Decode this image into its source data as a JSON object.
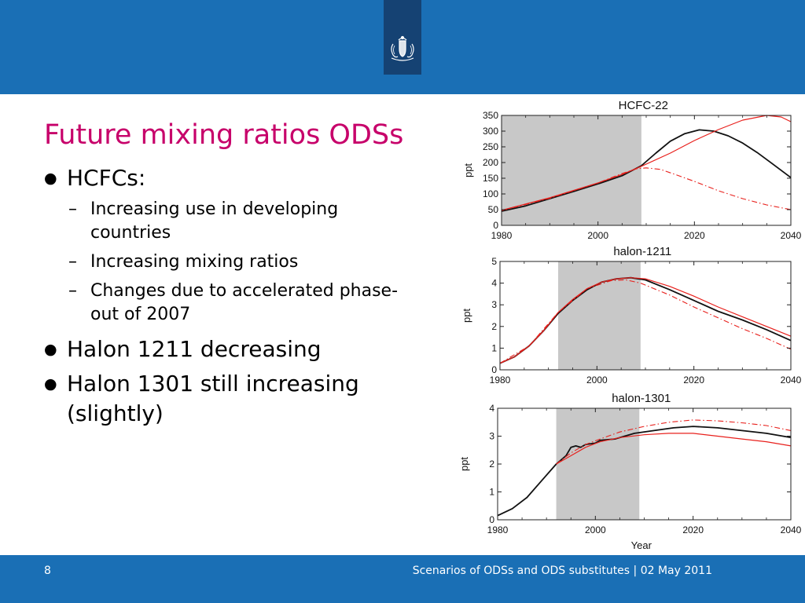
{
  "slide": {
    "title": "Future mixing ratios ODSs",
    "bullets": [
      {
        "text": "HCFCs:",
        "sub": [
          "Increasing use in developing countries",
          "Increasing mixing ratios",
          "Changes due to accelerated phase-out of 2007"
        ]
      },
      {
        "text": "Halon 1211 decreasing",
        "sub": []
      },
      {
        "text": "Halon 1301 still increasing (slightly)",
        "sub": []
      }
    ],
    "bullet_glyph": "●",
    "dash_glyph": "–"
  },
  "footer": {
    "page_number": "8",
    "text": "Scenarios of ODSs and ODS substitutes | 02 May 2011"
  },
  "colors": {
    "header_blue": "#1a6fb5",
    "logo_box": "#154273",
    "title_magenta": "#c7006a",
    "shade": "#c8c8c8",
    "red": "#e8201c",
    "black": "#111111"
  },
  "icons": {
    "logo": "coat-of-arms-icon"
  },
  "chart_data": [
    {
      "type": "line",
      "title": "HCFC-22",
      "xlabel": "",
      "ylabel": "ppt",
      "xlim": [
        1980,
        2040
      ],
      "ylim": [
        0,
        350
      ],
      "xticks": [
        1980,
        2000,
        2020,
        2040
      ],
      "yticks": [
        0,
        50,
        100,
        150,
        200,
        250,
        300,
        350
      ],
      "shade": [
        1980,
        2009
      ],
      "series": [
        {
          "style": "black-solid",
          "points": [
            [
              1980,
              45
            ],
            [
              1985,
              62
            ],
            [
              1990,
              85
            ],
            [
              1995,
              108
            ],
            [
              2000,
              132
            ],
            [
              2005,
              158
            ],
            [
              2009,
              190
            ],
            [
              2012,
              230
            ],
            [
              2015,
              268
            ],
            [
              2018,
              292
            ],
            [
              2021,
              304
            ],
            [
              2024,
              300
            ],
            [
              2027,
              285
            ],
            [
              2030,
              262
            ],
            [
              2033,
              232
            ],
            [
              2036,
              198
            ],
            [
              2040,
              152
            ]
          ]
        },
        {
          "style": "red-solid",
          "points": [
            [
              1980,
              48
            ],
            [
              1990,
              88
            ],
            [
              2000,
              135
            ],
            [
              2005,
              162
            ],
            [
              2009,
              188
            ],
            [
              2015,
              230
            ],
            [
              2020,
              270
            ],
            [
              2025,
              305
            ],
            [
              2030,
              335
            ],
            [
              2035,
              352
            ],
            [
              2038,
              345
            ],
            [
              2040,
              330
            ]
          ]
        },
        {
          "style": "red-dashdot",
          "points": [
            [
              1980,
              47
            ],
            [
              1990,
              86
            ],
            [
              2000,
              135
            ],
            [
              2005,
              165
            ],
            [
              2008,
              180
            ],
            [
              2010,
              183
            ],
            [
              2013,
              178
            ],
            [
              2016,
              162
            ],
            [
              2020,
              140
            ],
            [
              2025,
              110
            ],
            [
              2030,
              85
            ],
            [
              2035,
              65
            ],
            [
              2040,
              50
            ]
          ]
        }
      ]
    },
    {
      "type": "line",
      "title": "halon-1211",
      "xlabel": "",
      "ylabel": "ppt",
      "xlim": [
        1980,
        2040
      ],
      "ylim": [
        0,
        5
      ],
      "xticks": [
        1980,
        2000,
        2020,
        2040
      ],
      "yticks": [
        0,
        1,
        2,
        3,
        4,
        5
      ],
      "shade": [
        1992,
        2009
      ],
      "series": [
        {
          "style": "black-solid",
          "points": [
            [
              1980,
              0.3
            ],
            [
              1983,
              0.6
            ],
            [
              1986,
              1.1
            ],
            [
              1989,
              1.8
            ],
            [
              1992,
              2.6
            ],
            [
              1995,
              3.2
            ],
            [
              1998,
              3.7
            ],
            [
              2001,
              4.05
            ],
            [
              2004,
              4.2
            ],
            [
              2007,
              4.25
            ],
            [
              2010,
              4.15
            ],
            [
              2015,
              3.7
            ],
            [
              2020,
              3.2
            ],
            [
              2025,
              2.7
            ],
            [
              2030,
              2.3
            ],
            [
              2035,
              1.85
            ],
            [
              2040,
              1.35
            ]
          ]
        },
        {
          "style": "red-solid",
          "points": [
            [
              1980,
              0.3
            ],
            [
              1983,
              0.6
            ],
            [
              1986,
              1.1
            ],
            [
              1989,
              1.8
            ],
            [
              1992,
              2.65
            ],
            [
              1995,
              3.25
            ],
            [
              1998,
              3.75
            ],
            [
              2001,
              4.05
            ],
            [
              2004,
              4.2
            ],
            [
              2007,
              4.25
            ],
            [
              2010,
              4.2
            ],
            [
              2015,
              3.85
            ],
            [
              2020,
              3.4
            ],
            [
              2025,
              2.9
            ],
            [
              2030,
              2.45
            ],
            [
              2035,
              2.0
            ],
            [
              2040,
              1.55
            ]
          ]
        },
        {
          "style": "red-dashdot",
          "points": [
            [
              1980,
              0.3
            ],
            [
              1986,
              1.1
            ],
            [
              1992,
              2.65
            ],
            [
              1998,
              3.75
            ],
            [
              2003,
              4.12
            ],
            [
              2006,
              4.15
            ],
            [
              2009,
              4.0
            ],
            [
              2015,
              3.45
            ],
            [
              2020,
              2.9
            ],
            [
              2025,
              2.4
            ],
            [
              2030,
              1.9
            ],
            [
              2035,
              1.45
            ],
            [
              2040,
              0.95
            ]
          ]
        }
      ]
    },
    {
      "type": "line",
      "title": "halon-1301",
      "xlabel": "Year",
      "ylabel": "ppt",
      "xlim": [
        1980,
        2040
      ],
      "ylim": [
        0,
        4
      ],
      "xticks": [
        1980,
        2000,
        2020,
        2040
      ],
      "yticks": [
        0,
        1,
        2,
        3,
        4
      ],
      "shade": [
        1992,
        2009
      ],
      "series": [
        {
          "style": "black-solid",
          "points": [
            [
              1980,
              0.15
            ],
            [
              1983,
              0.4
            ],
            [
              1986,
              0.8
            ],
            [
              1989,
              1.4
            ],
            [
              1992,
              2.0
            ],
            [
              1994,
              2.3
            ],
            [
              1995,
              2.6
            ],
            [
              1996,
              2.65
            ],
            [
              1997,
              2.6
            ],
            [
              1998,
              2.7
            ],
            [
              2000,
              2.75
            ],
            [
              2001,
              2.85
            ],
            [
              2004,
              2.9
            ],
            [
              2006,
              3.0
            ],
            [
              2008,
              3.1
            ],
            [
              2012,
              3.2
            ],
            [
              2016,
              3.3
            ],
            [
              2020,
              3.35
            ],
            [
              2025,
              3.3
            ],
            [
              2030,
              3.2
            ],
            [
              2035,
              3.1
            ],
            [
              2040,
              2.95
            ]
          ]
        },
        {
          "style": "red-solid",
          "points": [
            [
              1992,
              2.0
            ],
            [
              1995,
              2.3
            ],
            [
              1998,
              2.6
            ],
            [
              2001,
              2.8
            ],
            [
              2005,
              2.95
            ],
            [
              2010,
              3.05
            ],
            [
              2015,
              3.1
            ],
            [
              2020,
              3.1
            ],
            [
              2025,
              3.0
            ],
            [
              2030,
              2.9
            ],
            [
              2035,
              2.8
            ],
            [
              2040,
              2.65
            ]
          ]
        },
        {
          "style": "red-dashdot",
          "points": [
            [
              1992,
              2.0
            ],
            [
              1995,
              2.4
            ],
            [
              1998,
              2.7
            ],
            [
              2001,
              2.9
            ],
            [
              2005,
              3.15
            ],
            [
              2010,
              3.35
            ],
            [
              2015,
              3.5
            ],
            [
              2020,
              3.58
            ],
            [
              2025,
              3.55
            ],
            [
              2030,
              3.48
            ],
            [
              2035,
              3.38
            ],
            [
              2040,
              3.2
            ]
          ]
        }
      ]
    }
  ]
}
